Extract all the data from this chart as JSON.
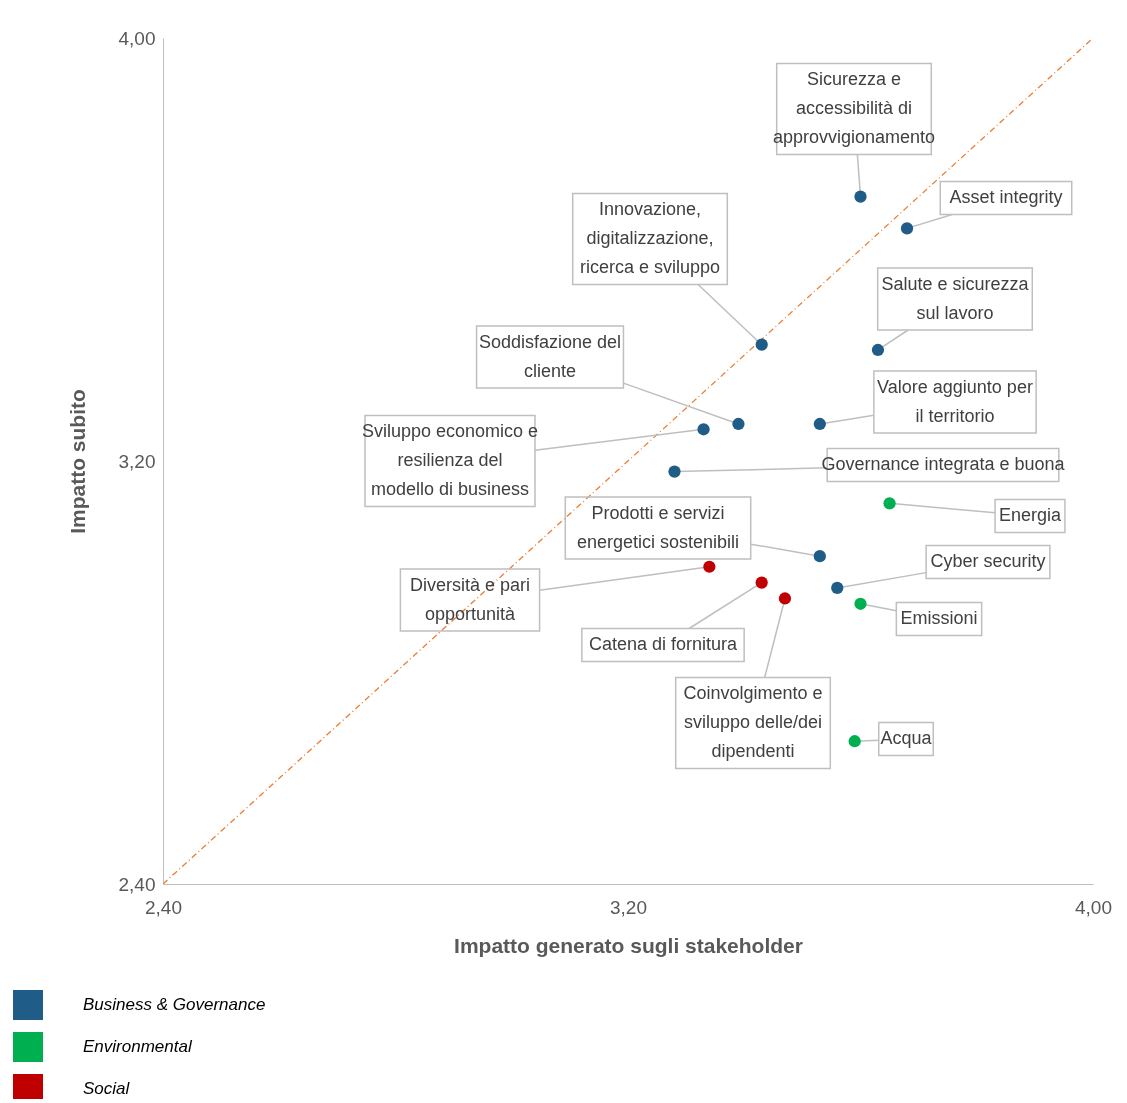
{
  "chart_data": {
    "type": "scatter",
    "xlabel": "Impatto generato sugli stakeholder",
    "ylabel": "Impatto subito",
    "xlim": [
      2.4,
      4.0
    ],
    "ylim": [
      2.4,
      4.0
    ],
    "xticks": [
      {
        "value": 2.4,
        "label": "2,40"
      },
      {
        "value": 3.2,
        "label": "3,20"
      },
      {
        "value": 4.0,
        "label": "4,00"
      }
    ],
    "yticks": [
      {
        "value": 2.4,
        "label": "2,40"
      },
      {
        "value": 3.2,
        "label": "3,20"
      },
      {
        "value": 4.0,
        "label": "4,00"
      }
    ],
    "legend": "bottom left",
    "series": [
      {
        "name": "Business & Governance",
        "color": "#1f5c87",
        "marker": "circle",
        "x": [
          3.6,
          3.68,
          3.43,
          3.63,
          3.39,
          3.53,
          3.33,
          3.28,
          3.53,
          3.56
        ],
        "values": [
          3.7,
          3.64,
          3.42,
          3.41,
          3.27,
          3.27,
          3.26,
          3.18,
          3.02,
          2.96
        ]
      },
      {
        "name": "Environmental",
        "color": "#00b050",
        "marker": "circle",
        "x": [
          3.65,
          3.6,
          3.59
        ],
        "values": [
          3.12,
          2.93,
          2.67
        ]
      },
      {
        "name": "Social",
        "color": "#c00000",
        "marker": "circle",
        "x": [
          3.34,
          3.43,
          3.47
        ],
        "values": [
          3.0,
          2.97,
          2.94
        ]
      },
      {
        "type": "line",
        "color": "#ed7d31",
        "line_style": "dashed",
        "x": [
          2.4,
          4.0
        ],
        "values": [
          2.4,
          4.0
        ]
      }
    ],
    "annotations": [
      {
        "text": "Sicurezza e accessibilità di approvvigionamento",
        "x": 3.6,
        "y": 3.7
      },
      {
        "text": "Asset integrity",
        "x": 3.68,
        "y": 3.64
      },
      {
        "text": "Innovazione, digitalizzazione, ricerca e sviluppo",
        "x": 3.43,
        "y": 3.42
      },
      {
        "text": "Salute e sicurezza sul lavoro",
        "x": 3.63,
        "y": 3.41
      },
      {
        "text": "Soddisfazione del cliente",
        "x": 3.39,
        "y": 3.27
      },
      {
        "text": "Valore aggiunto per il territorio",
        "x": 3.53,
        "y": 3.27
      },
      {
        "text": "Sviluppo economico e resilienza del modello di business",
        "x": 3.33,
        "y": 3.26
      },
      {
        "text": "Governance integrata e buona",
        "x": 3.28,
        "y": 3.18
      },
      {
        "text": "Energia",
        "x": 3.65,
        "y": 3.12
      },
      {
        "text": "Prodotti e servizi energetici sostenibili",
        "x": 3.53,
        "y": 3.02
      },
      {
        "text": "Diversità e pari opportunità",
        "x": 3.34,
        "y": 3.0
      },
      {
        "text": "Catena di fornitura",
        "x": 3.43,
        "y": 2.97
      },
      {
        "text": "Coinvolgimento e sviluppo delle/dei dipendenti",
        "x": 3.47,
        "y": 2.94
      },
      {
        "text": "Cyber security",
        "x": 3.56,
        "y": 2.96
      },
      {
        "text": "Emissioni",
        "x": 3.6,
        "y": 2.93
      },
      {
        "text": "Acqua",
        "x": 3.59,
        "y": 2.67
      }
    ]
  }
}
